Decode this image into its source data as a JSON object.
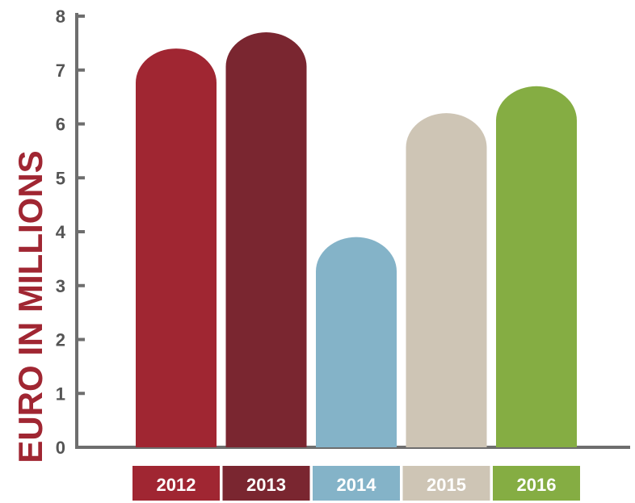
{
  "chart_data": {
    "type": "bar",
    "categories": [
      "2012",
      "2013",
      "2014",
      "2015",
      "2016"
    ],
    "values": [
      7.4,
      7.7,
      3.9,
      6.2,
      6.7
    ],
    "colors": [
      "#a02632",
      "#7a2630",
      "#84b3c8",
      "#cec5b5",
      "#85ad43"
    ],
    "axis_color": "#6e6e6e",
    "title": "",
    "xlabel": "",
    "ylabel": "EURO IN MILLIONS",
    "ylim": [
      0,
      8
    ],
    "yticks": [
      "0",
      "1",
      "2",
      "3",
      "4",
      "5",
      "6",
      "7",
      "8"
    ],
    "grid": false,
    "legend": "below-axis"
  }
}
